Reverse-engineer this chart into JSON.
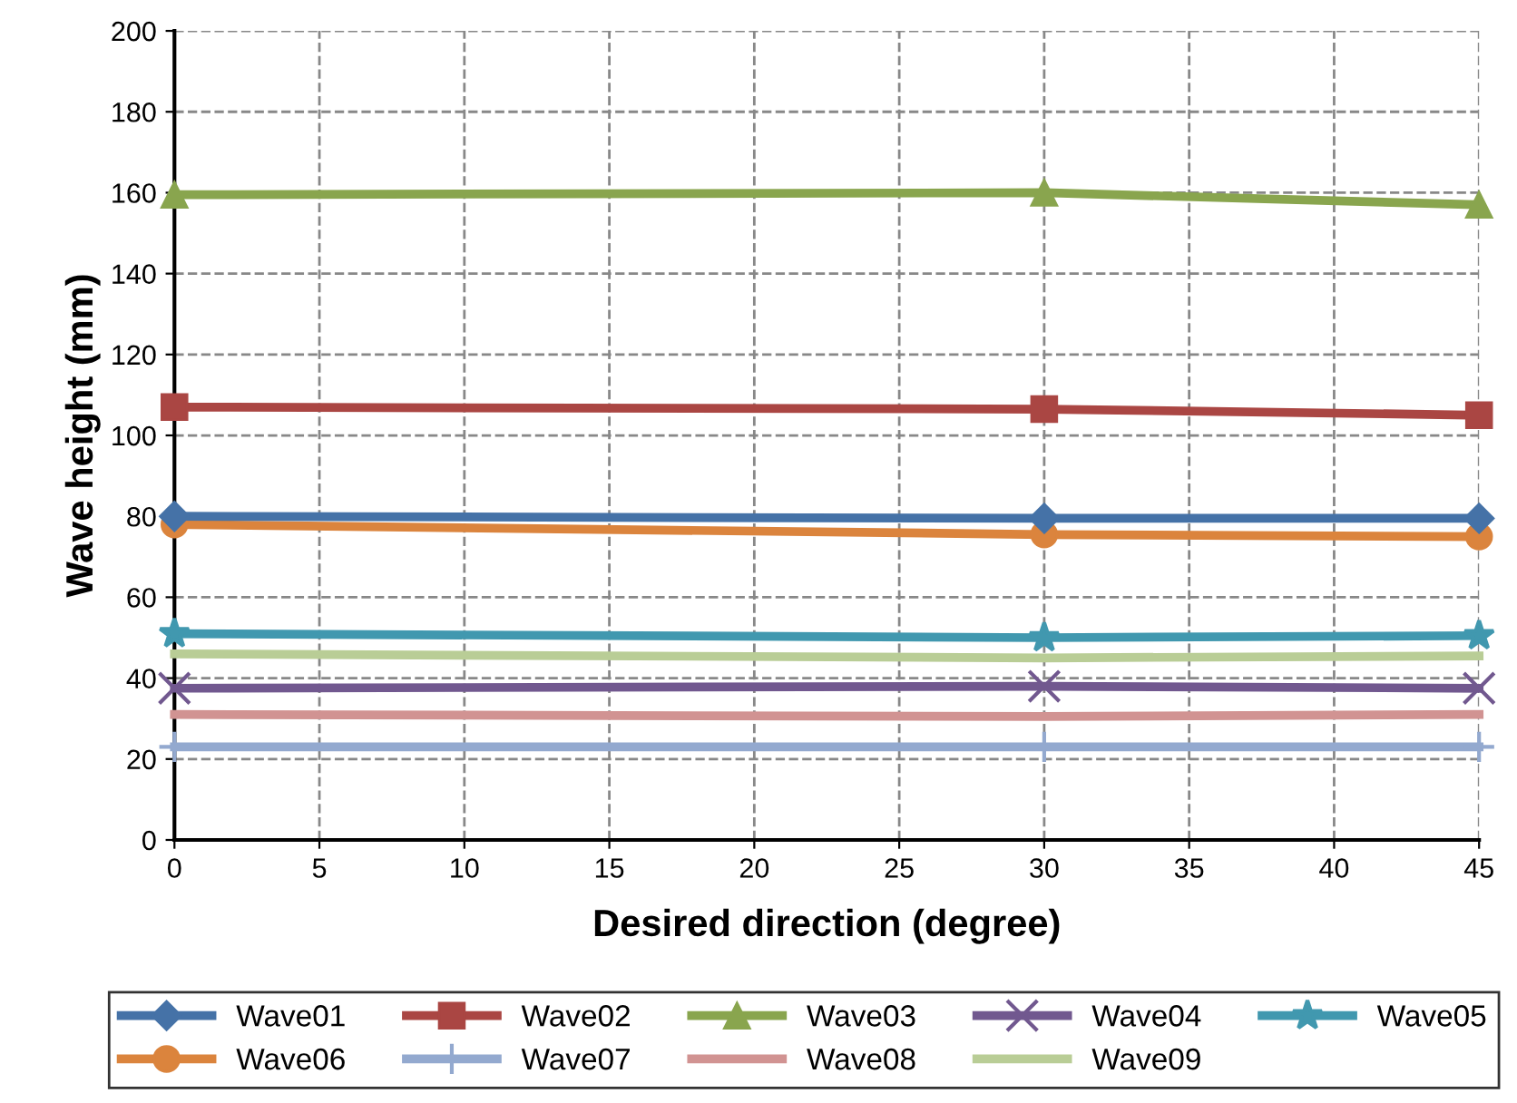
{
  "chart_data": {
    "type": "line",
    "xlabel": "Desired direction (degree)",
    "ylabel": "Wave height (mm)",
    "x": [
      0,
      30,
      45
    ],
    "xlim": [
      0,
      45
    ],
    "xticks": [
      0,
      5,
      10,
      15,
      20,
      25,
      30,
      35,
      40,
      45
    ],
    "ylim": [
      0,
      200
    ],
    "yticks": [
      0,
      20,
      40,
      60,
      80,
      100,
      120,
      140,
      160,
      180,
      200
    ],
    "grid": true,
    "legend": "bottom",
    "line_style": "solid",
    "series": [
      {
        "name": "Wave01",
        "color": "#4572a7",
        "marker": "diamond",
        "values": [
          80,
          79.5,
          79.5
        ]
      },
      {
        "name": "Wave02",
        "color": "#aa4643",
        "marker": "square",
        "values": [
          107,
          106.5,
          105
        ]
      },
      {
        "name": "Wave03",
        "color": "#89a54e",
        "marker": "triangle",
        "values": [
          159.5,
          160,
          157
        ]
      },
      {
        "name": "Wave04",
        "color": "#71588f",
        "marker": "x",
        "values": [
          37.5,
          38,
          37.5
        ]
      },
      {
        "name": "Wave05",
        "color": "#4198af",
        "marker": "star",
        "values": [
          51,
          50,
          50.5
        ]
      },
      {
        "name": "Wave06",
        "color": "#db843d",
        "marker": "circle",
        "values": [
          78,
          75.5,
          75
        ]
      },
      {
        "name": "Wave07",
        "color": "#93a9cf",
        "marker": "cross",
        "values": [
          23,
          23,
          23
        ]
      },
      {
        "name": "Wave08",
        "color": "#d19392",
        "marker": "none",
        "values": [
          31,
          30.5,
          31
        ]
      },
      {
        "name": "Wave09",
        "color": "#b9cd96",
        "marker": "none",
        "values": [
          46,
          45,
          45.5
        ]
      }
    ]
  }
}
